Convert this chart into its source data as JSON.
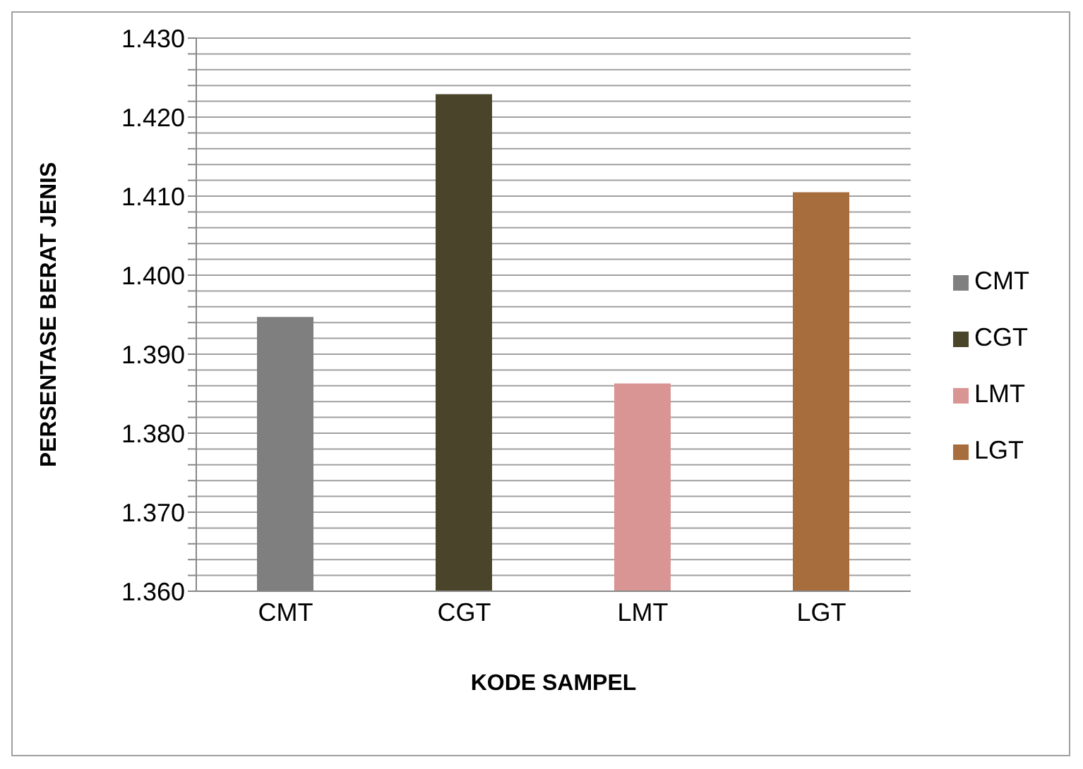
{
  "chart_data": {
    "type": "bar",
    "xlabel": "KODE SAMPEL",
    "ylabel": "PERSENTASE BERAT JENIS",
    "categories": [
      "CMT",
      "CGT",
      "LMT",
      "LGT"
    ],
    "series": [
      {
        "name": "CMT",
        "color": "#7f7f7f",
        "values": [
          1.3947,
          null,
          null,
          null
        ]
      },
      {
        "name": "CGT",
        "color": "#4a452a",
        "values": [
          null,
          1.4229,
          null,
          null
        ]
      },
      {
        "name": "LMT",
        "color": "#d99594",
        "values": [
          null,
          null,
          1.3863,
          null
        ]
      },
      {
        "name": "LGT",
        "color": "#a86d3d",
        "values": [
          null,
          null,
          null,
          1.4105
        ]
      }
    ],
    "ylim": [
      1.36,
      1.43
    ],
    "yticks": [
      {
        "value": 1.36,
        "label": "1.360"
      },
      {
        "value": 1.362,
        "label": null
      },
      {
        "value": 1.364,
        "label": null
      },
      {
        "value": 1.366,
        "label": null
      },
      {
        "value": 1.368,
        "label": null
      },
      {
        "value": 1.37,
        "label": "1.370"
      },
      {
        "value": 1.372,
        "label": null
      },
      {
        "value": 1.374,
        "label": null
      },
      {
        "value": 1.376,
        "label": null
      },
      {
        "value": 1.378,
        "label": null
      },
      {
        "value": 1.38,
        "label": "1.380"
      },
      {
        "value": 1.382,
        "label": null
      },
      {
        "value": 1.384,
        "label": null
      },
      {
        "value": 1.386,
        "label": null
      },
      {
        "value": 1.388,
        "label": null
      },
      {
        "value": 1.39,
        "label": "1.390"
      },
      {
        "value": 1.392,
        "label": null
      },
      {
        "value": 1.394,
        "label": null
      },
      {
        "value": 1.396,
        "label": null
      },
      {
        "value": 1.398,
        "label": null
      },
      {
        "value": 1.4,
        "label": "1.400"
      },
      {
        "value": 1.402,
        "label": null
      },
      {
        "value": 1.404,
        "label": null
      },
      {
        "value": 1.406,
        "label": null
      },
      {
        "value": 1.408,
        "label": null
      },
      {
        "value": 1.41,
        "label": "1.410"
      },
      {
        "value": 1.412,
        "label": null
      },
      {
        "value": 1.414,
        "label": null
      },
      {
        "value": 1.416,
        "label": null
      },
      {
        "value": 1.418,
        "label": null
      },
      {
        "value": 1.42,
        "label": "1.420"
      },
      {
        "value": 1.422,
        "label": null
      },
      {
        "value": 1.424,
        "label": null
      },
      {
        "value": 1.426,
        "label": null
      },
      {
        "value": 1.428,
        "label": null
      },
      {
        "value": 1.43,
        "label": "1.430"
      }
    ],
    "grid": "y",
    "legend": "right"
  }
}
